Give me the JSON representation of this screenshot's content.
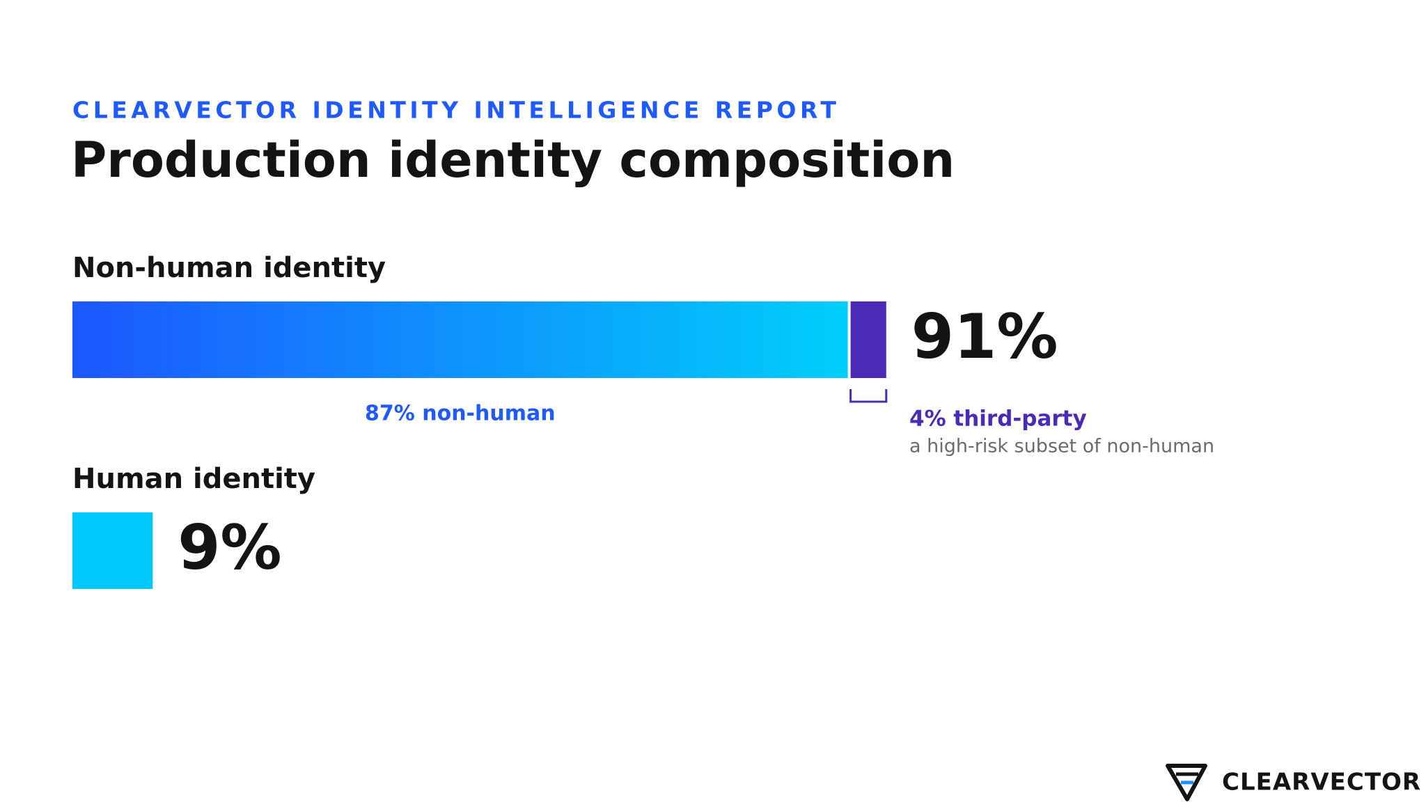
{
  "eyebrow": "CLEARVECTOR IDENTITY INTELLIGENCE REPORT",
  "chart_data": {
    "type": "stacked-bar",
    "title": "Production identity composition",
    "series": [
      {
        "name": "Non-human identity",
        "values": [
          87,
          4
        ],
        "value_labels": [
          "87% non-human",
          "4% third-party"
        ],
        "colors": [
          [
            "#1d57ff",
            "#00cffb"
          ],
          "#4a2bb8"
        ],
        "label_colors": [
          "#1f5aff",
          "#4a2bb8"
        ],
        "total": 91,
        "total_label": "91%",
        "note": "a high-risk subset of non-human"
      },
      {
        "name": "Human identity",
        "values": [
          9
        ],
        "value_labels": [
          "9%"
        ],
        "colors": [
          "#00c8fa"
        ]
      }
    ]
  },
  "footer": {
    "brand": "CLEARVECTOR"
  }
}
